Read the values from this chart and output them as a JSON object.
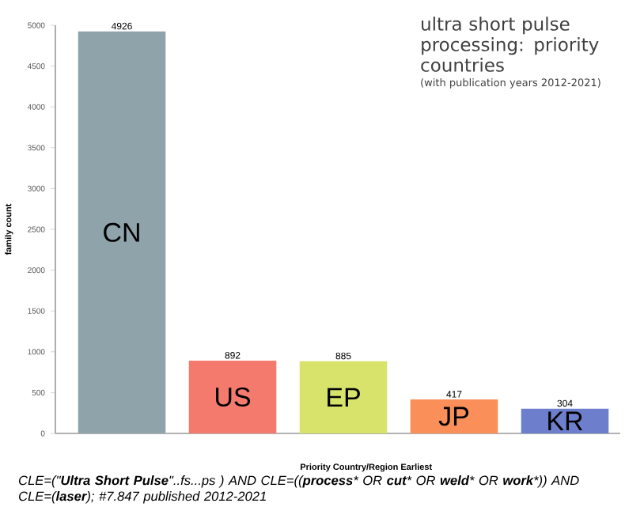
{
  "chart_data": {
    "type": "bar",
    "title": "ultra short pulse processing: priority countries",
    "subtitle": "(with publication years 2012-2021)",
    "xlabel": "Priority Country/Region Earliest",
    "ylabel": "family count",
    "categories": [
      "CN",
      "US",
      "EP",
      "JP",
      "KR"
    ],
    "values": [
      4926,
      892,
      885,
      417,
      304
    ],
    "colors": [
      "#8fa3ab",
      "#f47a6e",
      "#d7e36a",
      "#fb8f5a",
      "#6d7fcc"
    ],
    "ylim": [
      0,
      5000
    ],
    "yticks": [
      0,
      500,
      1000,
      1500,
      2000,
      2500,
      3000,
      3500,
      4000,
      4500,
      5000
    ],
    "data_labels": true,
    "annotations": [
      "CLE=(\"**Ultra Short Pulse**\"..fs...ps ) AND CLE=((**process*** OR **cut*** OR **weld*** OR **work***)) AND CLE=(**laser**); #7.847 published 2012-2021"
    ]
  }
}
